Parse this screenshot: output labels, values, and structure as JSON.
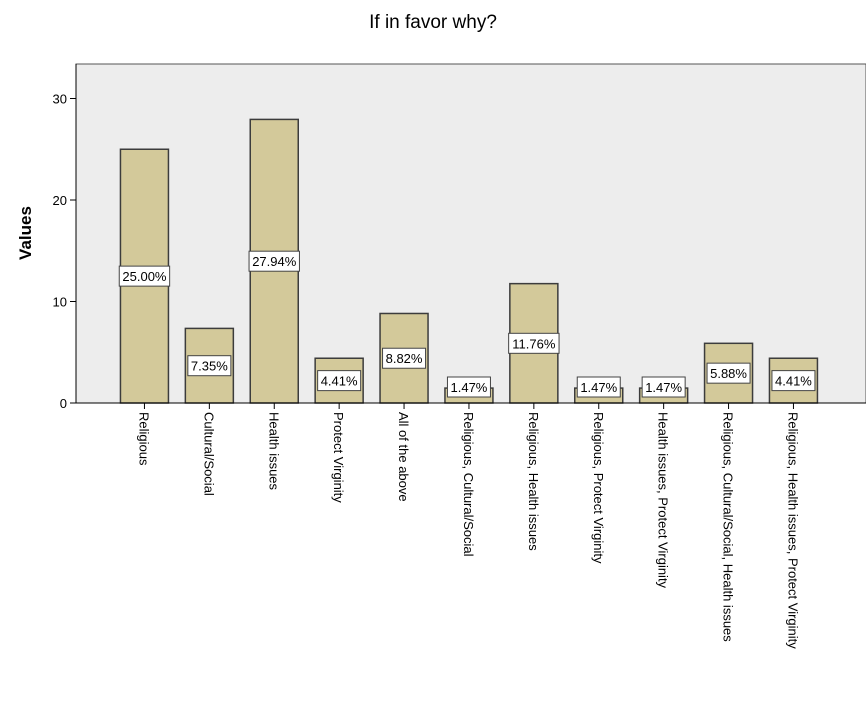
{
  "chart_data": {
    "type": "bar",
    "title": "If in favor why?",
    "xlabel": "",
    "ylabel": "Values",
    "ylim": [
      0,
      33
    ],
    "yticks": [
      0,
      10,
      20,
      30
    ],
    "grid": false,
    "categories": [
      "Religious",
      "Cultural/Social",
      "Health issues",
      "Protect Virginity",
      "All of the above",
      "Religious, Cultural/Social",
      "Religious, Health issues",
      "Religious, Protect Virginity",
      "Health issues, Protect Virginity",
      "Religious, Cultural/Social, Health issues",
      "Religious, Health issues, Protect Virginity"
    ],
    "values": [
      25,
      7.35,
      27.94,
      4.41,
      8.82,
      1.47,
      11.76,
      1.47,
      1.47,
      5.88,
      4.41
    ],
    "data_labels": [
      "25.00%",
      "7.35%",
      "27.94%",
      "4.41%",
      "8.82%",
      "1.47%",
      "11.76%",
      "1.47%",
      "1.47%",
      "5.88%",
      "4.41%"
    ],
    "colors": {
      "bar_fill": "#d3c99a",
      "bar_stroke": "#3c3c3c",
      "plot_bg": "#ededed"
    }
  }
}
